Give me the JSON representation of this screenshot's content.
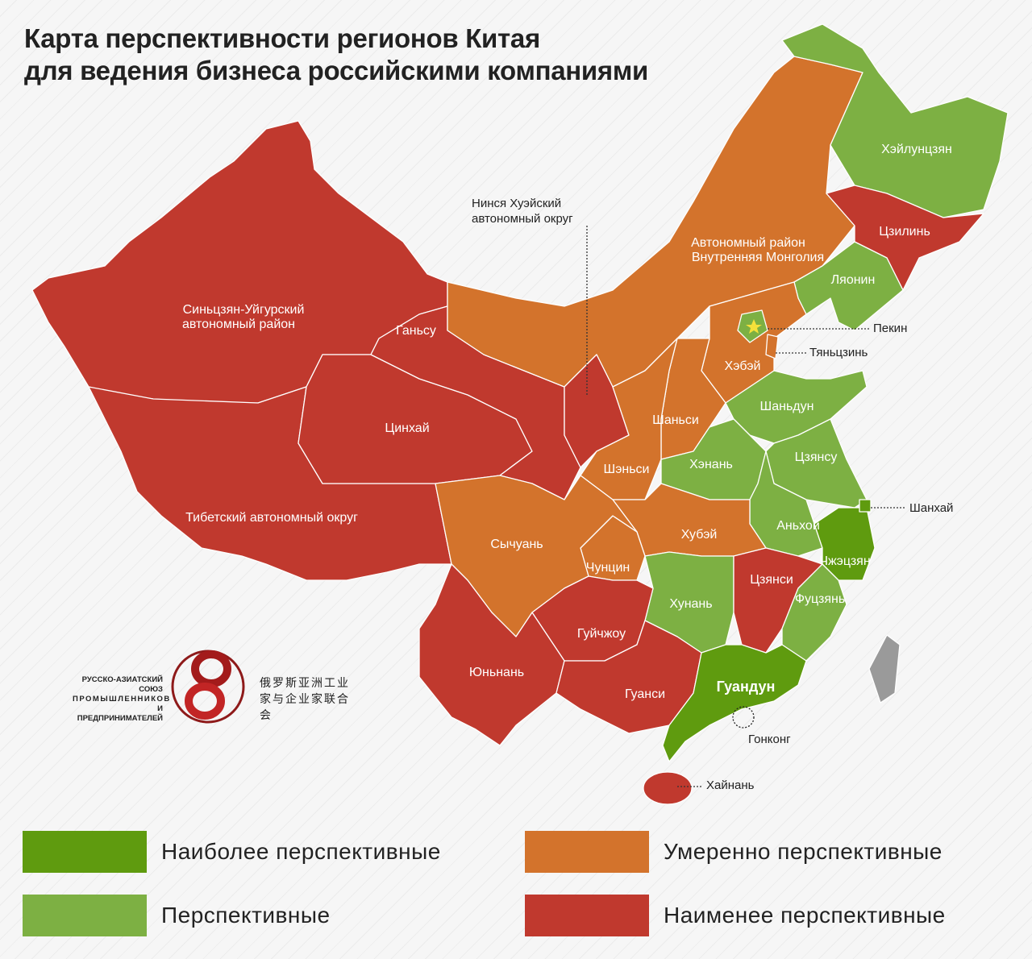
{
  "title": {
    "line1": "Карта перспективности регионов Китая",
    "line2": "для ведения бизнеса российскими компаниями"
  },
  "colors": {
    "most": "#5f9b0f",
    "promising": "#7db043",
    "moderate": "#d3732c",
    "least": "#c0392e",
    "taiwan": "#9a9a9a"
  },
  "legend": [
    {
      "key": "most",
      "label": "Наиболее перспективные"
    },
    {
      "key": "moderate",
      "label": "Умеренно перспективные"
    },
    {
      "key": "promising",
      "label": "Перспективные"
    },
    {
      "key": "least",
      "label": "Наименее перспективные"
    }
  ],
  "regions": {
    "xinjiang": {
      "label1": "Синьцзян-Уйгурский",
      "label2": "автономный район",
      "category": "least"
    },
    "tibet": {
      "label": "Тибетский автономный округ",
      "category": "least"
    },
    "qinghai": {
      "label": "Цинхай",
      "category": "least"
    },
    "gansu": {
      "label": "Ганьсу",
      "category": "least"
    },
    "ningxia": {
      "label1": "Нинся Хуэйский",
      "label2": "автономный округ",
      "category": "least"
    },
    "innermongolia": {
      "label1": "Автономный район",
      "label2": "Внутренняя Монголия",
      "category": "moderate"
    },
    "heilongjiang": {
      "label": "Хэйлунцзян",
      "category": "promising"
    },
    "jilin": {
      "label": "Цзилинь",
      "category": "least"
    },
    "liaoning": {
      "label": "Ляонин",
      "category": "promising"
    },
    "beijing": {
      "label": "Пекин",
      "category": "promising"
    },
    "tianjin": {
      "label": "Тяньцзинь",
      "category": "moderate"
    },
    "hebei": {
      "label": "Хэбэй",
      "category": "moderate"
    },
    "shanxi": {
      "label": "Шаньси",
      "category": "moderate"
    },
    "shaanxi": {
      "label": "Шэньси",
      "category": "moderate"
    },
    "shandong": {
      "label": "Шаньдун",
      "category": "promising"
    },
    "henan": {
      "label": "Хэнань",
      "category": "promising"
    },
    "jiangsu": {
      "label": "Цзянсу",
      "category": "promising"
    },
    "anhui": {
      "label": "Аньхой",
      "category": "promising"
    },
    "shanghai": {
      "label": "Шанхай",
      "category": "most"
    },
    "zhejiang": {
      "label": "Чжэцзян",
      "category": "most"
    },
    "hubei": {
      "label": "Хубэй",
      "category": "moderate"
    },
    "chongqing": {
      "label": "Чунцин",
      "category": "moderate"
    },
    "sichuan": {
      "label": "Сычуань",
      "category": "moderate"
    },
    "hunan": {
      "label": "Хунань",
      "category": "promising"
    },
    "jiangxi": {
      "label": "Цзянси",
      "category": "least"
    },
    "fujian": {
      "label": "Фуцзянь",
      "category": "promising"
    },
    "guizhou": {
      "label": "Гуйчжоу",
      "category": "least"
    },
    "yunnan": {
      "label": "Юньнань",
      "category": "least"
    },
    "guangxi": {
      "label": "Гуанси",
      "category": "least"
    },
    "guangdong": {
      "label": "Гуандун",
      "category": "most"
    },
    "hongkong": {
      "label": "Гонконг",
      "category": "most"
    },
    "hainan": {
      "label": "Хайнань",
      "category": "least"
    },
    "taiwan": {
      "category": "taiwan"
    }
  },
  "logo": {
    "ru_line1": "РУССКО-АЗИАТСКИЙ СОЮЗ",
    "ru_line2": "ПРОМЫШЛЕННИКОВ",
    "ru_line3": "И ПРЕДПРИНИМАТЕЛЕЙ",
    "cn_line1": "俄罗斯亚洲工业",
    "cn_line2": "家与企业家联合会"
  }
}
